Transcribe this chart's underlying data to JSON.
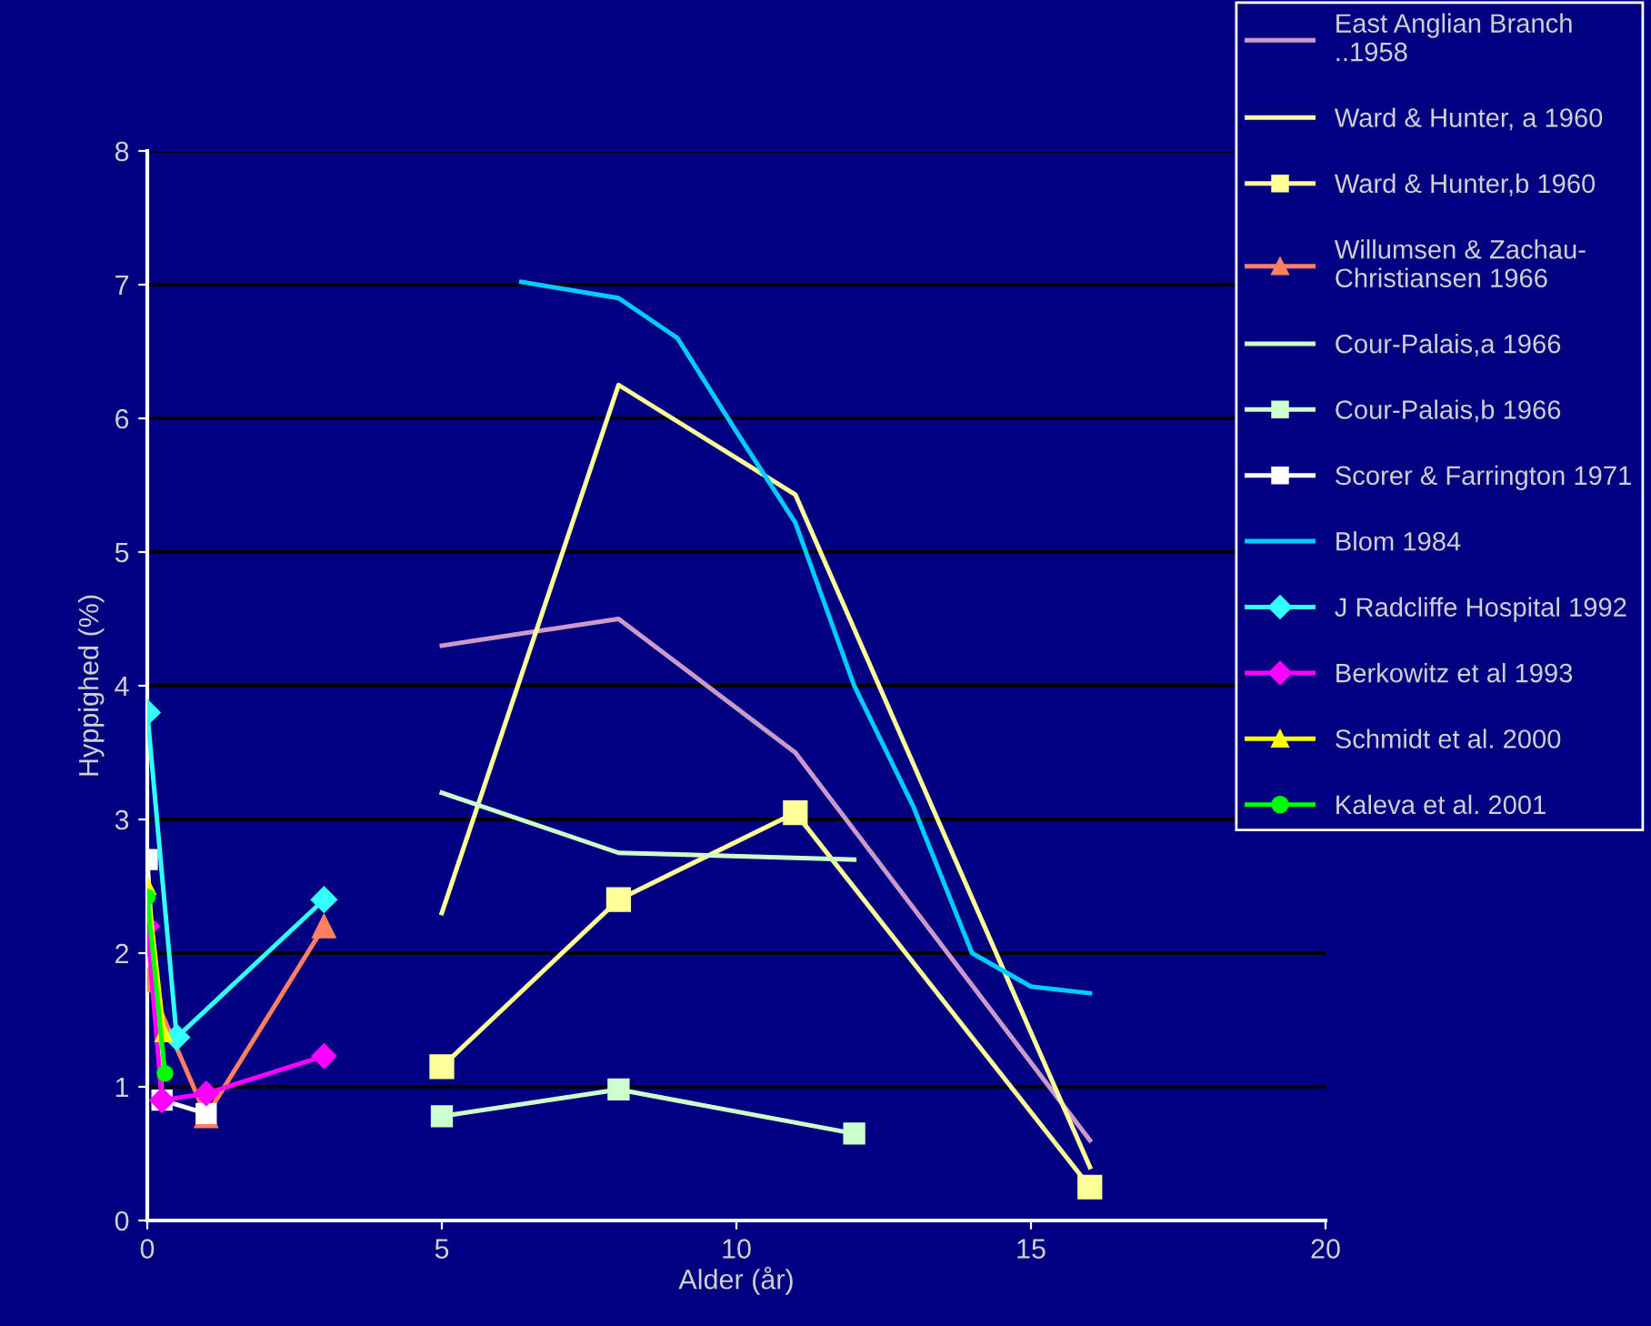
{
  "chart_data": {
    "type": "line",
    "xlabel": "Alder (år)",
    "ylabel": "Hyppighed (%)",
    "xlim": [
      0,
      20
    ],
    "xticks": [
      0,
      5,
      10,
      15,
      20
    ],
    "ylim": [
      0,
      8
    ],
    "yticks": [
      0,
      1,
      2,
      3,
      4,
      5,
      6,
      7,
      8
    ],
    "grid": "y",
    "legend": "right",
    "series": [
      {
        "name": "East Anglian Branch\n..1958",
        "color": "#cc99cc",
        "marker": "none",
        "x": [
          5,
          8,
          11,
          16
        ],
        "values": [
          4.3,
          4.5,
          3.5,
          0.6
        ]
      },
      {
        "name": "Ward & Hunter, a 1960",
        "color": "#ffff99",
        "marker": "none",
        "x": [
          5,
          8,
          11,
          16
        ],
        "values": [
          2.3,
          6.25,
          5.43,
          0.4
        ]
      },
      {
        "name": "Ward & Hunter,b 1960",
        "color": "#ffff99",
        "marker": "square",
        "x": [
          5,
          8,
          11,
          16
        ],
        "values": [
          1.15,
          2.4,
          3.05,
          0.25
        ]
      },
      {
        "name": "Willumsen & Zachau-\nChristiansen 1966",
        "color": "#ff8060",
        "marker": "triangle",
        "x": [
          0,
          1,
          3
        ],
        "values": [
          1.8,
          0.78,
          2.2
        ]
      },
      {
        "name": "Cour-Palais,a 1966",
        "color": "#ccffcc",
        "marker": "none",
        "x": [
          5,
          8,
          12
        ],
        "values": [
          3.2,
          2.75,
          2.7
        ]
      },
      {
        "name": "Cour-Palais,b 1966",
        "color": "#ccffcc",
        "marker": "square",
        "x": [
          5,
          8,
          12
        ],
        "values": [
          0.78,
          0.98,
          0.65
        ]
      },
      {
        "name": "Scorer & Farrington 1971",
        "color": "#ffffff",
        "marker": "square",
        "x": [
          0,
          0.25,
          1
        ],
        "values": [
          2.7,
          0.9,
          0.8
        ]
      },
      {
        "name": "Blom 1984",
        "color": "#00ccff",
        "marker": "none",
        "x": [
          6.35,
          8,
          9,
          10,
          11,
          12,
          13,
          14,
          15,
          16
        ],
        "values": [
          7.02,
          6.9,
          6.6,
          5.9,
          5.22,
          4.0,
          3.1,
          2.0,
          1.75,
          1.7
        ]
      },
      {
        "name": "J Radcliffe Hospital 1992",
        "color": "#33ffff",
        "marker": "diamond",
        "x": [
          0,
          0.5,
          3
        ],
        "values": [
          3.8,
          1.37,
          2.4
        ]
      },
      {
        "name": "Berkowitz et al 1993",
        "color": "#ff00ff",
        "marker": "diamond",
        "x": [
          0,
          0.25,
          1,
          3
        ],
        "values": [
          2.2,
          0.9,
          0.95,
          1.23
        ]
      },
      {
        "name": "Schmidt et al. 2000",
        "color": "#ffff00",
        "marker": "triangle",
        "x": [
          0,
          0.28
        ],
        "values": [
          2.5,
          1.4
        ]
      },
      {
        "name": "Kaleva et al. 2001",
        "color": "#00ff00",
        "marker": "circle",
        "x": [
          0,
          0.3
        ],
        "values": [
          2.42,
          1.1
        ]
      }
    ]
  }
}
